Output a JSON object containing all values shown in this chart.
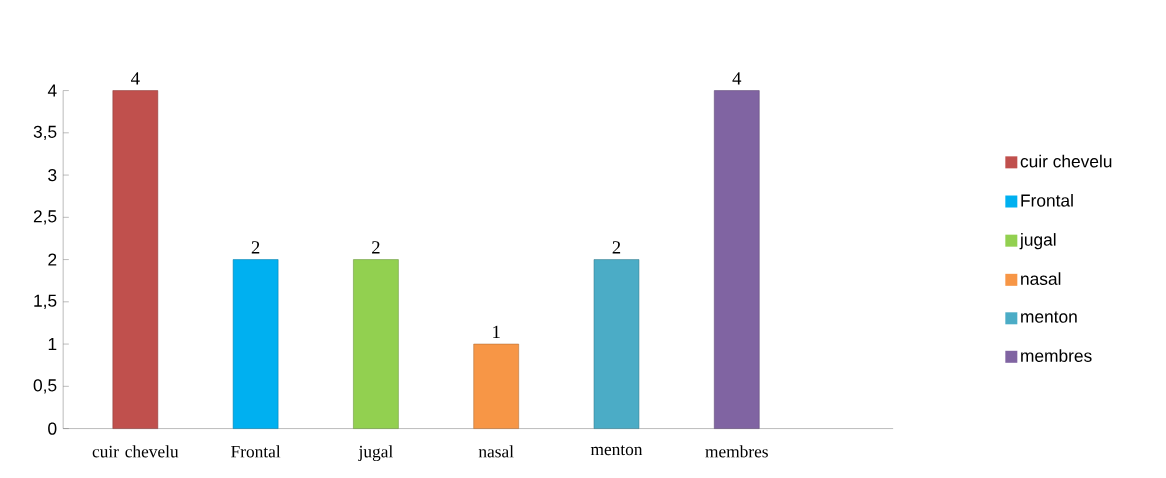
{
  "chart_data": {
    "type": "bar",
    "categories": [
      "cuir chevelu",
      "Frontal",
      "jugal",
      "nasal",
      "menton",
      "membres"
    ],
    "series": [
      {
        "name": "cuir chevelu",
        "color": "#c0504d",
        "values": [
          4,
          null,
          null,
          null,
          null,
          null
        ]
      },
      {
        "name": "Frontal",
        "color": "#00b0f0",
        "values": [
          null,
          2,
          null,
          null,
          null,
          null
        ]
      },
      {
        "name": "jugal",
        "color": "#92d050",
        "values": [
          null,
          null,
          2,
          null,
          null,
          null
        ]
      },
      {
        "name": "nasal",
        "color": "#f79646",
        "values": [
          null,
          null,
          null,
          1,
          null,
          null
        ]
      },
      {
        "name": "menton",
        "color": "#4bacc6",
        "values": [
          null,
          null,
          null,
          null,
          2,
          null
        ]
      },
      {
        "name": "membres",
        "color": "#8064a2",
        "values": [
          null,
          null,
          null,
          null,
          null,
          4
        ]
      }
    ],
    "ylim": [
      0,
      4
    ],
    "yticks": [
      0,
      {
        "value": 0.5,
        "label": "0,5"
      },
      1,
      {
        "value": 1.5,
        "label": "1,5"
      },
      2,
      {
        "value": 2.5,
        "label": "2,5"
      },
      3,
      {
        "value": 3.5,
        "label": "3,5"
      },
      4
    ],
    "data_labels": true,
    "grid": false,
    "legend": "right"
  }
}
